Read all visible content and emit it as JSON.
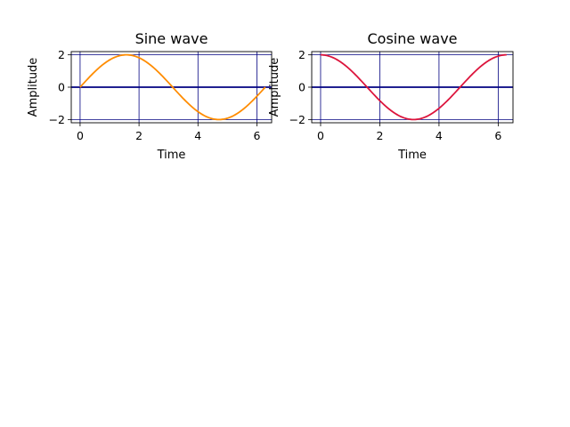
{
  "chart_data": [
    {
      "type": "line",
      "title": "Sine wave",
      "xlabel": "Time",
      "ylabel": "Amplitude",
      "function": "2*sin(t)",
      "x_range": [
        0,
        6.2832
      ],
      "xlim": [
        -0.3,
        6.5
      ],
      "ylim": [
        -2.2,
        2.2
      ],
      "xticks": [
        0,
        2,
        4,
        6
      ],
      "yticks": [
        -2,
        0,
        2
      ],
      "grid": true,
      "grid_color": "#000080",
      "zero_line_color": "#000080",
      "line_color": "#ff8c00",
      "samples": [
        {
          "x": 0,
          "y": 0
        },
        {
          "x": 1.5708,
          "y": 2
        },
        {
          "x": 3.1416,
          "y": 0
        },
        {
          "x": 4.7124,
          "y": -2
        },
        {
          "x": 6.2832,
          "y": 0
        }
      ]
    },
    {
      "type": "line",
      "title": "Cosine wave",
      "xlabel": "Time",
      "ylabel": "Amplitude",
      "function": "2*cos(t)",
      "x_range": [
        0,
        6.2832
      ],
      "xlim": [
        -0.3,
        6.5
      ],
      "ylim": [
        -2.2,
        2.2
      ],
      "xticks": [
        0,
        2,
        4,
        6
      ],
      "yticks": [
        -2,
        0,
        2
      ],
      "grid": true,
      "grid_color": "#000080",
      "zero_line_color": "#000080",
      "line_color": "#dc143c",
      "samples": [
        {
          "x": 0,
          "y": 2
        },
        {
          "x": 1.5708,
          "y": 0
        },
        {
          "x": 3.1416,
          "y": -2
        },
        {
          "x": 4.7124,
          "y": 0
        },
        {
          "x": 6.2832,
          "y": 2
        }
      ]
    }
  ]
}
